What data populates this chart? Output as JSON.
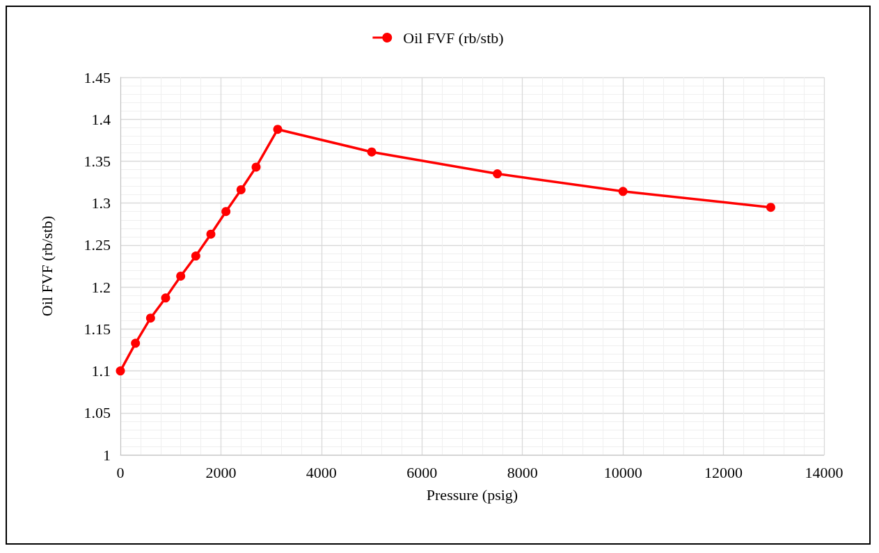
{
  "chart_data": {
    "type": "line",
    "xlabel": "Pressure (psig)",
    "ylabel": "Oil FVF (rb/stb)",
    "x": [
      0,
      300,
      600,
      900,
      1200,
      1500,
      1800,
      2100,
      2400,
      2700,
      3130,
      5000,
      7500,
      10000,
      12940
    ],
    "series": [
      {
        "name": "Oil FVF (rb/stb)",
        "color": "#ff0000",
        "values": [
          1.1,
          1.133,
          1.163,
          1.187,
          1.213,
          1.237,
          1.263,
          1.29,
          1.316,
          1.343,
          1.388,
          1.361,
          1.335,
          1.314,
          1.295
        ]
      }
    ],
    "xlim": [
      0,
      14000
    ],
    "xticks": [
      0,
      2000,
      4000,
      6000,
      8000,
      10000,
      12000,
      14000
    ],
    "ylim": [
      1,
      1.45
    ],
    "yticks": [
      1,
      1.05,
      1.1,
      1.15,
      1.2,
      1.25,
      1.3,
      1.35,
      1.4,
      1.45
    ],
    "grid": true,
    "legend": "top",
    "marker": "circle",
    "line_style": "solid"
  }
}
